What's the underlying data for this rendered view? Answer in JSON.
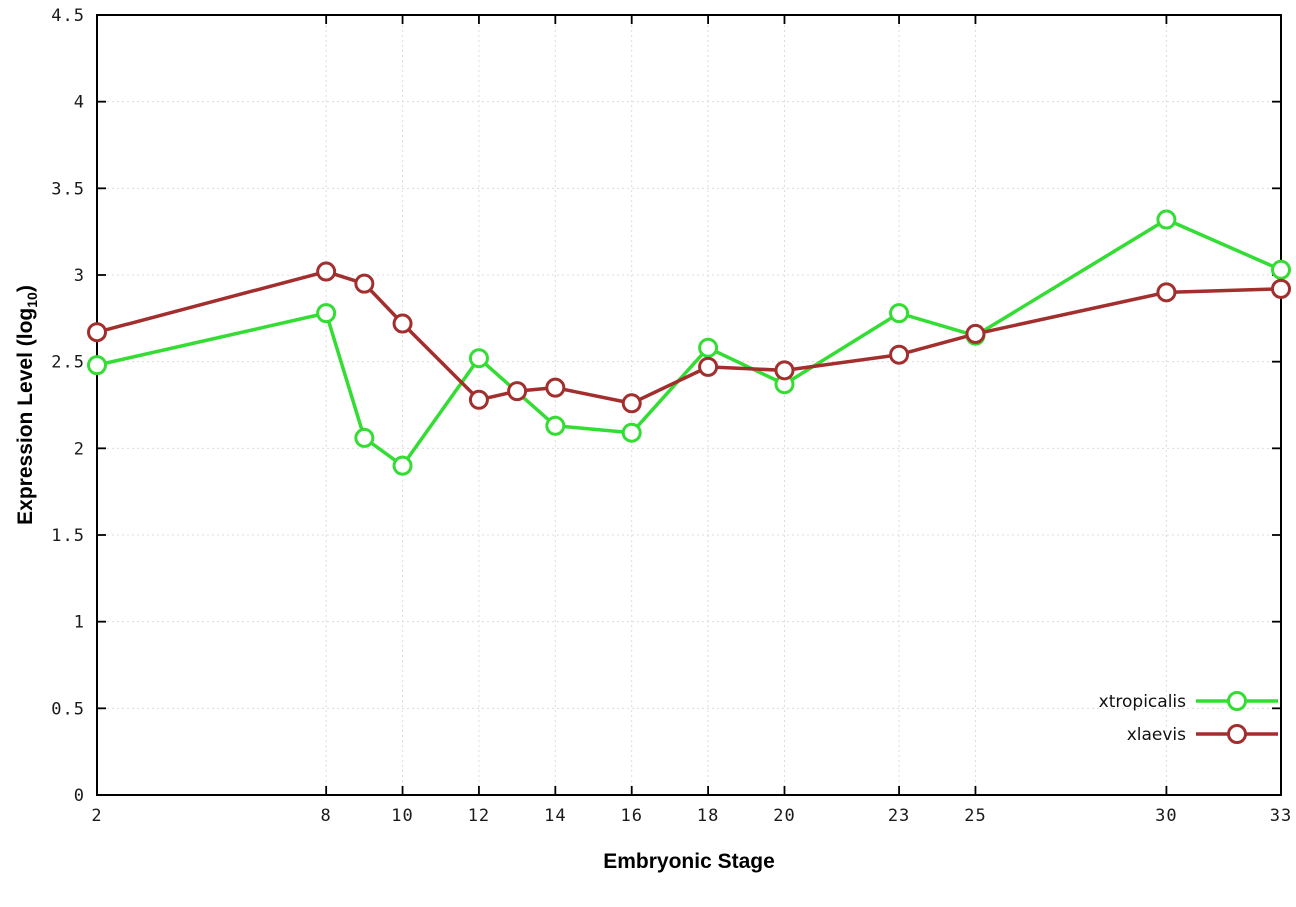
{
  "chart_data": {
    "type": "line",
    "title": "",
    "xlabel": "Embryonic Stage",
    "ylabel_parts": {
      "prefix": "Expression Level (log",
      "sub": "10",
      "suffix": ")"
    },
    "xlim": [
      2,
      33
    ],
    "ylim": [
      0,
      4.5
    ],
    "x_ticks": [
      2,
      8,
      10,
      12,
      14,
      16,
      18,
      20,
      23,
      25,
      30,
      33
    ],
    "x_tick_labels": [
      "2",
      "8",
      "10",
      "12",
      "14",
      "16",
      "18",
      "20",
      "23",
      "25",
      "30",
      "33"
    ],
    "y_ticks": [
      0,
      0.5,
      1,
      1.5,
      2,
      2.5,
      3,
      3.5,
      4,
      4.5
    ],
    "y_tick_labels": [
      "0",
      "0.5",
      "1",
      "1.5",
      "2",
      "2.5",
      "3",
      "3.5",
      "4",
      "4.5"
    ],
    "grid": true,
    "legend_position": "bottom-right",
    "border_color": "#000000",
    "grid_color": "#dcdcdc",
    "series": [
      {
        "name": "xtropicalis",
        "color": "#33dd33",
        "x": [
          2,
          8,
          9,
          10,
          12,
          14,
          16,
          18,
          20,
          23,
          25,
          30,
          33
        ],
        "y": [
          2.48,
          2.78,
          2.06,
          1.9,
          2.52,
          2.13,
          2.09,
          2.58,
          2.37,
          2.78,
          2.65,
          3.32,
          3.03
        ]
      },
      {
        "name": "xlaevis",
        "color": "#a32e2e",
        "x": [
          2,
          8,
          9,
          10,
          12,
          13,
          14,
          16,
          18,
          20,
          23,
          25,
          30,
          33
        ],
        "y": [
          2.67,
          3.02,
          2.95,
          2.72,
          2.28,
          2.33,
          2.35,
          2.26,
          2.47,
          2.45,
          2.54,
          2.66,
          2.9,
          2.92
        ]
      }
    ]
  }
}
